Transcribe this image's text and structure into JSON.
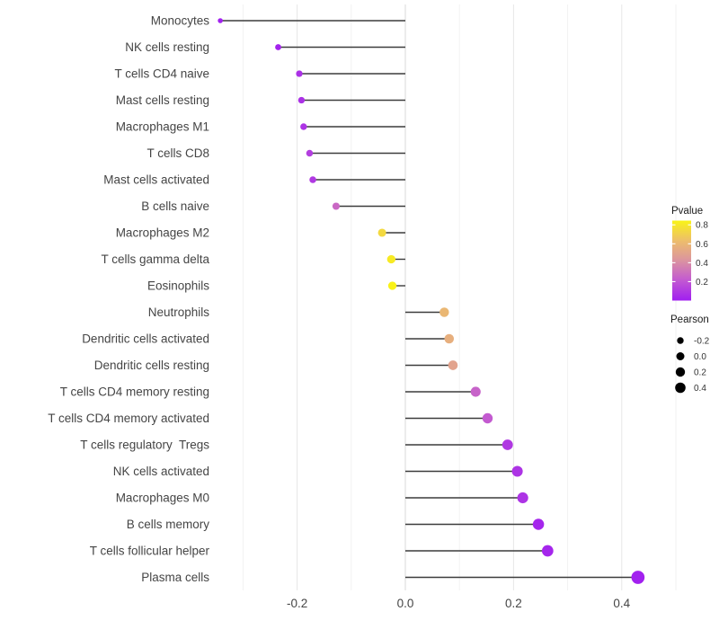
{
  "chart_data": {
    "type": "lollipop",
    "title": "",
    "xlabel": "",
    "ylabel": "",
    "x_tick_labels": [
      "-0.2",
      "0.0",
      "0.2",
      "0.4"
    ],
    "x_tick_values": [
      -0.2,
      0.0,
      0.2,
      0.4
    ],
    "x_minor_tick_values": [
      -0.3,
      -0.1,
      0.1,
      0.3,
      0.5
    ],
    "xlim": [
      -0.36,
      0.5
    ],
    "grid": true,
    "baseline_value": 0.0,
    "legend_position": "right",
    "points": [
      {
        "category": "Monocytes",
        "pearson": -0.342,
        "pvalue": 0.01
      },
      {
        "category": "NK cells resting",
        "pearson": -0.235,
        "pvalue": 0.02
      },
      {
        "category": "T cells CD4 naive",
        "pearson": -0.196,
        "pvalue": 0.07
      },
      {
        "category": "Mast cells resting",
        "pearson": -0.192,
        "pvalue": 0.07
      },
      {
        "category": "Macrophages M1",
        "pearson": -0.188,
        "pvalue": 0.08
      },
      {
        "category": "T cells CD8",
        "pearson": -0.177,
        "pvalue": 0.12
      },
      {
        "category": "Mast cells activated",
        "pearson": -0.171,
        "pvalue": 0.1
      },
      {
        "category": "B cells naive",
        "pearson": -0.128,
        "pvalue": 0.27
      },
      {
        "category": "Macrophages M2",
        "pearson": -0.043,
        "pvalue": 0.74
      },
      {
        "category": "T cells gamma delta",
        "pearson": -0.026,
        "pvalue": 0.81
      },
      {
        "category": "Eosinophils",
        "pearson": -0.024,
        "pvalue": 0.84
      },
      {
        "category": "Neutrophils",
        "pearson": 0.072,
        "pvalue": 0.6
      },
      {
        "category": "Dendritic cells activated",
        "pearson": 0.081,
        "pvalue": 0.56
      },
      {
        "category": "Dendritic cells resting",
        "pearson": 0.088,
        "pvalue": 0.5
      },
      {
        "category": "T cells CD4 memory resting",
        "pearson": 0.13,
        "pvalue": 0.25
      },
      {
        "category": "T cells CD4 memory activated",
        "pearson": 0.152,
        "pvalue": 0.22
      },
      {
        "category": "T cells regulatory  Tregs",
        "pearson": 0.189,
        "pvalue": 0.1
      },
      {
        "category": "NK cells activated",
        "pearson": 0.207,
        "pvalue": 0.08
      },
      {
        "category": "Macrophages M0",
        "pearson": 0.217,
        "pvalue": 0.08
      },
      {
        "category": "B cells memory",
        "pearson": 0.246,
        "pvalue": 0.03
      },
      {
        "category": "T cells follicular helper",
        "pearson": 0.263,
        "pvalue": 0.03
      },
      {
        "category": "Plasma cells",
        "pearson": 0.43,
        "pvalue": 0.01
      }
    ]
  },
  "legends": {
    "pvalue": {
      "title": "Pvalue",
      "tick_labels": [
        "0.8",
        "0.6",
        "0.4",
        "0.2"
      ],
      "tick_values": [
        0.8,
        0.6,
        0.4,
        0.2
      ],
      "domain": [
        0,
        0.845
      ],
      "gradient_stops": [
        {
          "t": 0.0,
          "color": "#A01EF0"
        },
        {
          "t": 0.25,
          "color": "#C258D2"
        },
        {
          "t": 0.5,
          "color": "#DB93A0"
        },
        {
          "t": 0.75,
          "color": "#EDBE6B"
        },
        {
          "t": 1.0,
          "color": "#F9F316"
        }
      ]
    },
    "pearson": {
      "title": "Pearson",
      "items": [
        {
          "label": "-0.2",
          "radius": 3.7
        },
        {
          "label": "0.0",
          "radius": 4.5
        },
        {
          "label": "0.2",
          "radius": 5.2
        },
        {
          "label": "0.4",
          "radius": 5.8
        }
      ],
      "dot_color": "#000000"
    }
  },
  "style": {
    "background": "#FFFFFF",
    "grid_major": "#E7E7E7",
    "grid_minor": "#F2F2F2",
    "zero_line": "#DADADA",
    "stem_color": "#3C3C3C",
    "axis_text_color": "#454545",
    "legend_text_color": "#333333"
  }
}
